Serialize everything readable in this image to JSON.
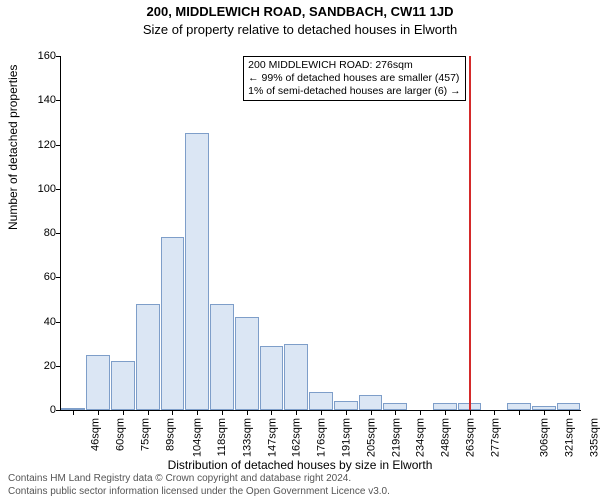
{
  "title": "200, MIDDLEWICH ROAD, SANDBACH, CW11 1JD",
  "subtitle": "Size of property relative to detached houses in Elworth",
  "chart": {
    "type": "histogram",
    "ylabel": "Number of detached properties",
    "xlabel": "Distribution of detached houses by size in Elworth",
    "ylim": [
      0,
      160
    ],
    "yticks": [
      0,
      20,
      40,
      60,
      80,
      100,
      120,
      140,
      160
    ],
    "bar_fill": "#dbe6f4",
    "bar_border": "#7e9ec9",
    "marker_color": "#d42a2a",
    "background": "#ffffff",
    "categories": [
      "46sqm",
      "60sqm",
      "75sqm",
      "89sqm",
      "104sqm",
      "118sqm",
      "133sqm",
      "147sqm",
      "162sqm",
      "176sqm",
      "191sqm",
      "205sqm",
      "219sqm",
      "234sqm",
      "248sqm",
      "263sqm",
      "277sqm",
      "",
      "306sqm",
      "321sqm",
      "335sqm"
    ],
    "values": [
      1,
      25,
      22,
      48,
      78,
      125,
      48,
      42,
      29,
      30,
      8,
      4,
      7,
      3,
      0,
      3,
      3,
      0,
      3,
      2,
      3
    ],
    "marker_index": 16,
    "annotation": {
      "line1": "200 MIDDLEWICH ROAD: 276sqm",
      "line2": "← 99% of detached houses are smaller (457)",
      "line3": "1% of semi-detached houses are larger (6) →",
      "anchor_index": 16
    }
  },
  "footer": {
    "line1": "Contains HM Land Registry data © Crown copyright and database right 2024.",
    "line2": "Contains public sector information licensed under the Open Government Licence v3.0."
  }
}
